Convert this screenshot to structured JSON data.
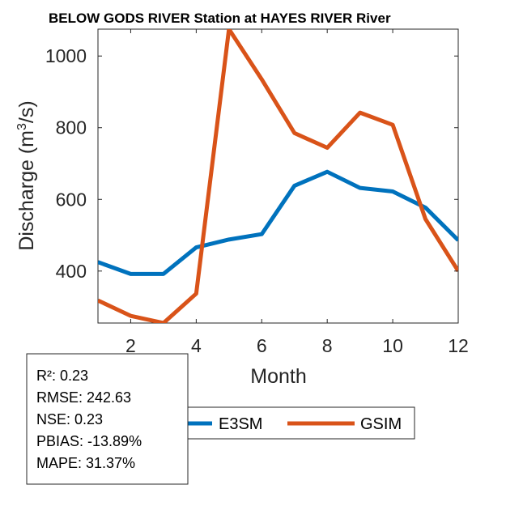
{
  "chart_data": {
    "type": "line",
    "title": "BELOW GODS RIVER  Station at  HAYES RIVER  River",
    "xlabel": "Month",
    "ylabel": "Discharge (m",
    "ylabel_sup": "3",
    "ylabel_end": "/s)",
    "xlim": [
      1,
      12
    ],
    "ylim": [
      255,
      1075
    ],
    "x_ticks": [
      2,
      4,
      6,
      8,
      10,
      12
    ],
    "y_ticks": [
      400,
      600,
      800,
      1000
    ],
    "grid": false,
    "legend_position": "bottom",
    "x": [
      1,
      2,
      3,
      4,
      5,
      6,
      7,
      8,
      9,
      10,
      11,
      12
    ],
    "series": [
      {
        "name": "E3SM",
        "color": "#0072BD",
        "values": [
          425,
          392,
          392,
          466,
          488,
          503,
          638,
          677,
          632,
          622,
          577,
          486
        ]
      },
      {
        "name": "GSIM",
        "color": "#D95319",
        "values": [
          318,
          275,
          255,
          337,
          1075,
          935,
          785,
          744,
          842,
          808,
          545,
          400
        ]
      }
    ]
  },
  "stats": {
    "r2": "R²: 0.23",
    "rmse": "RMSE: 242.63",
    "nse": "NSE: 0.23",
    "pbias": "PBIAS: -13.89%",
    "mape": "MAPE: 31.37%"
  }
}
